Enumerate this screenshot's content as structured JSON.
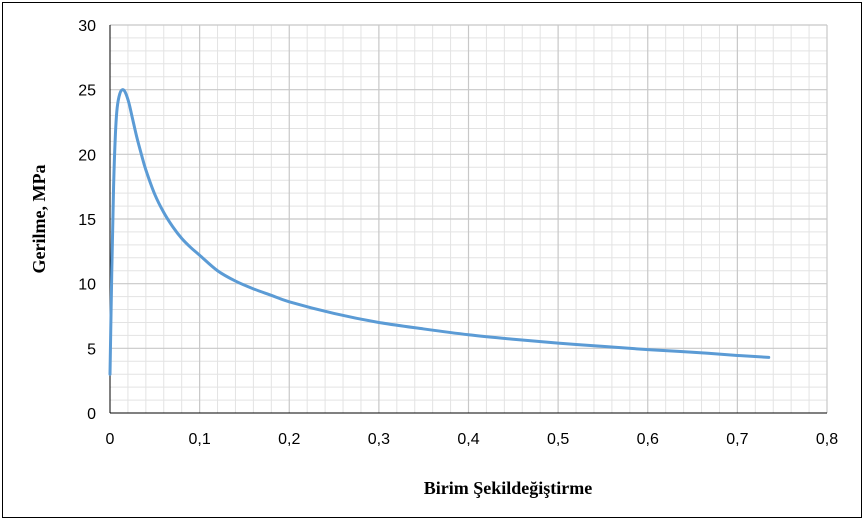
{
  "chart_data": {
    "type": "line",
    "title": "",
    "xlabel": "Birim Şekildeğiştirme",
    "ylabel": "Gerilme, MPa",
    "xlim": [
      0,
      0.8
    ],
    "ylim": [
      0,
      30
    ],
    "x_ticks": [
      "0",
      "0,1",
      "0,2",
      "0,3",
      "0,4",
      "0,5",
      "0,6",
      "0,7",
      "0,8"
    ],
    "y_ticks": [
      "0",
      "5",
      "10",
      "15",
      "20",
      "25",
      "30"
    ],
    "grid": true,
    "legend": "none",
    "colors": {
      "series": "#5b9bd5",
      "grid_major": "#c8c8c8",
      "grid_minor": "#e3e3e3",
      "axis": "#000000"
    },
    "series": [
      {
        "x": [
          0.0,
          0.002,
          0.004,
          0.006,
          0.008,
          0.011,
          0.014,
          0.017,
          0.021,
          0.025,
          0.03,
          0.035,
          0.04,
          0.05,
          0.06,
          0.07,
          0.08,
          0.09,
          0.1,
          0.12,
          0.14,
          0.16,
          0.18,
          0.2,
          0.25,
          0.3,
          0.35,
          0.4,
          0.45,
          0.5,
          0.55,
          0.6,
          0.65,
          0.7,
          0.735
        ],
        "y": [
          3.0,
          11.0,
          17.5,
          21.5,
          23.6,
          24.7,
          25.0,
          24.8,
          24.0,
          22.8,
          21.3,
          20.0,
          18.8,
          16.9,
          15.5,
          14.4,
          13.5,
          12.8,
          12.2,
          11.0,
          10.2,
          9.6,
          9.1,
          8.6,
          7.7,
          7.0,
          6.5,
          6.05,
          5.7,
          5.4,
          5.15,
          4.9,
          4.7,
          4.45,
          4.3
        ]
      }
    ]
  }
}
